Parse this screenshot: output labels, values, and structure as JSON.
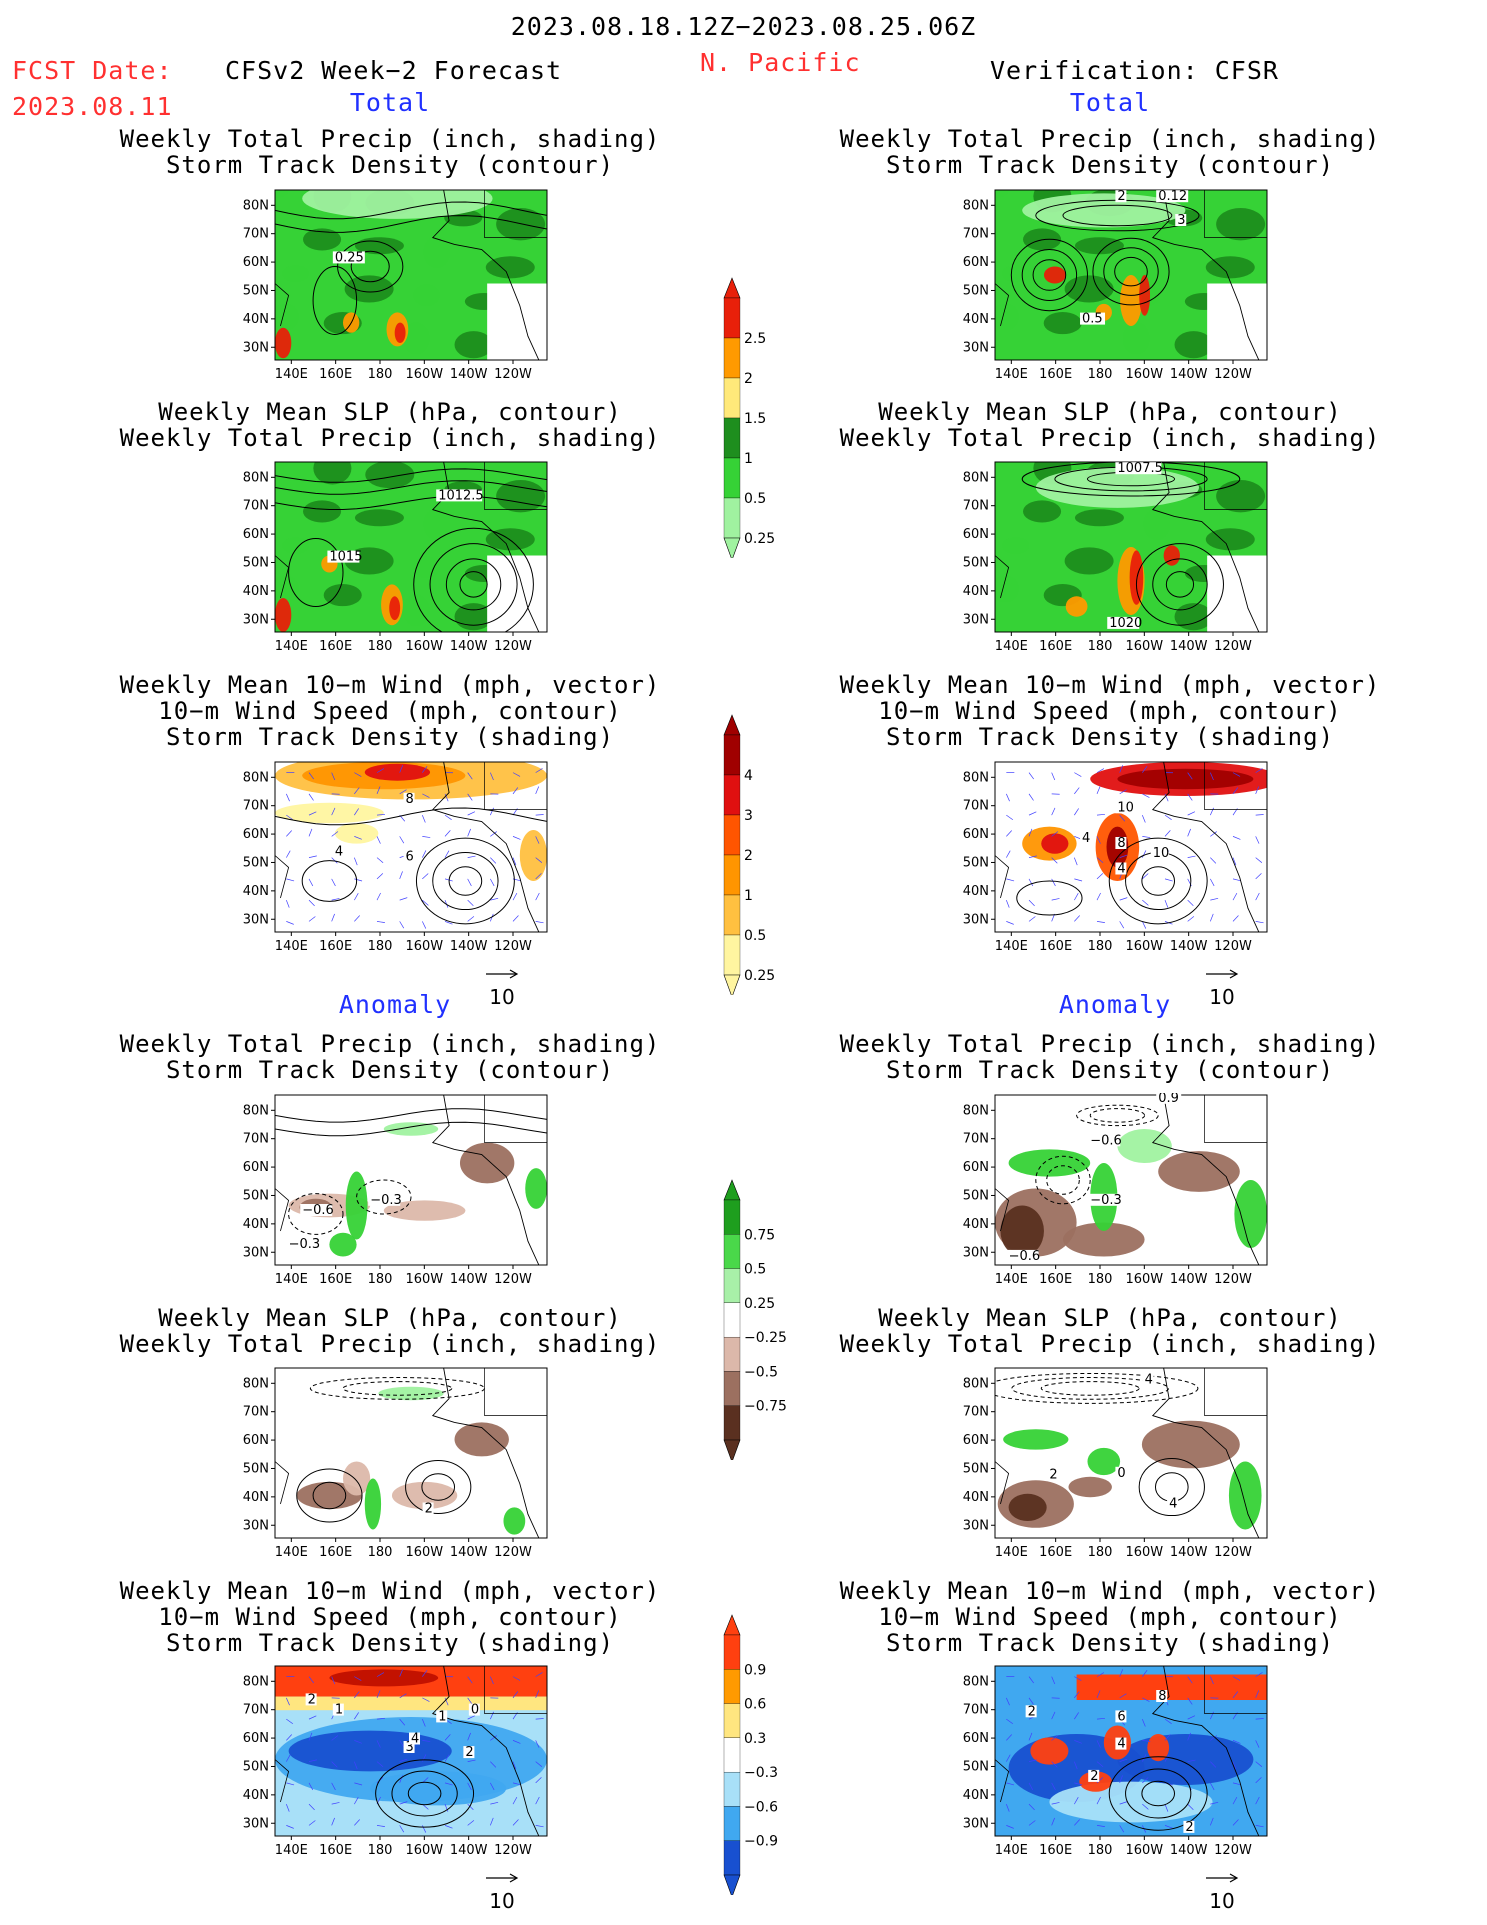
{
  "header": {
    "date_range": "2023.08.18.12Z−2023.08.25.06Z",
    "fcst_label": "FCST Date:",
    "fcst_date": "2023.08.11",
    "forecast_title": "CFSv2 Week−2 Forecast",
    "region": "N. Pacific",
    "verification_title": "Verification: CFSR"
  },
  "sections": {
    "total": "Total",
    "anomaly": "Anomaly"
  },
  "titles": {
    "precip_storm": [
      "Weekly Total Precip (inch, shading)",
      "Storm Track Density (contour)"
    ],
    "slp_precip": [
      "Weekly Mean SLP (hPa, contour)",
      "Weekly Total Precip (inch, shading)"
    ],
    "wind_storm": [
      "Weekly Mean 10−m Wind (mph, vector)",
      "10−m Wind Speed (mph, contour)",
      "Storm Track Density (shading)"
    ]
  },
  "axes": {
    "lat_ticks": [
      "80N",
      "70N",
      "60N",
      "50N",
      "40N",
      "30N"
    ],
    "lon_ticks": [
      "140E",
      "160E",
      "180",
      "160W",
      "140W",
      "120W"
    ]
  },
  "vector_ref": "10",
  "colorbars": {
    "precip_total": {
      "labels": [
        "2.5",
        "2",
        "1.5",
        "1",
        "0.5",
        "0.25"
      ],
      "colors": [
        "#e8200a",
        "#ff9a00",
        "#ffe97a",
        "#1e8e1e",
        "#36d236",
        "#a0f2a0"
      ]
    },
    "storm_total": {
      "labels": [
        "4",
        "3",
        "2",
        "1",
        "0.5",
        "0.25"
      ],
      "colors": [
        "#a00000",
        "#e01010",
        "#ff5500",
        "#ff9500",
        "#ffc040",
        "#fff5a0"
      ]
    },
    "precip_anom": {
      "labels": [
        "0.75",
        "0.5",
        "0.25",
        "−0.25",
        "−0.5",
        "−0.75"
      ],
      "colors": [
        "#1e9e1e",
        "#4ad84a",
        "#a8f0a8",
        "#ffffff",
        "#dcb8aa",
        "#9c7060",
        "#5a3020"
      ]
    },
    "storm_anom": {
      "labels": [
        "0.9",
        "0.6",
        "0.3",
        "−0.3",
        "−0.6",
        "−0.9"
      ],
      "colors": [
        "#ff4010",
        "#ff9a00",
        "#ffe680",
        "#ffffff",
        "#a8e0f8",
        "#40a8f0",
        "#1850d0"
      ]
    }
  },
  "panels": {
    "f_precip": {
      "labels": [
        "0.25"
      ]
    },
    "v_precip": {
      "labels": [
        "2",
        "0.12",
        "3",
        "0.5"
      ]
    },
    "f_slp": {
      "labels": [
        "1012.5",
        "1015"
      ]
    },
    "v_slp": {
      "labels": [
        "1007.5",
        "1020"
      ]
    },
    "f_wind": {
      "labels": [
        "8",
        "4",
        "6"
      ]
    },
    "v_wind": {
      "labels": [
        "10",
        "4",
        "8",
        "10",
        "4"
      ]
    },
    "fa_precip": {
      "labels": [
        "−0.6",
        "−0.3",
        "−0.3"
      ]
    },
    "va_precip": {
      "labels": [
        "0.9",
        "−0.6",
        "−0.3",
        "−0.6"
      ]
    },
    "fa_slp": {
      "labels": [
        "2"
      ]
    },
    "va_slp": {
      "labels": [
        "4",
        "2",
        "0",
        "4"
      ]
    },
    "fa_wind": {
      "labels": [
        "2",
        "1",
        "1",
        "3",
        "4",
        "2",
        "0"
      ]
    },
    "va_wind": {
      "labels": [
        "2",
        "8",
        "6",
        "4",
        "2",
        "2"
      ]
    }
  }
}
